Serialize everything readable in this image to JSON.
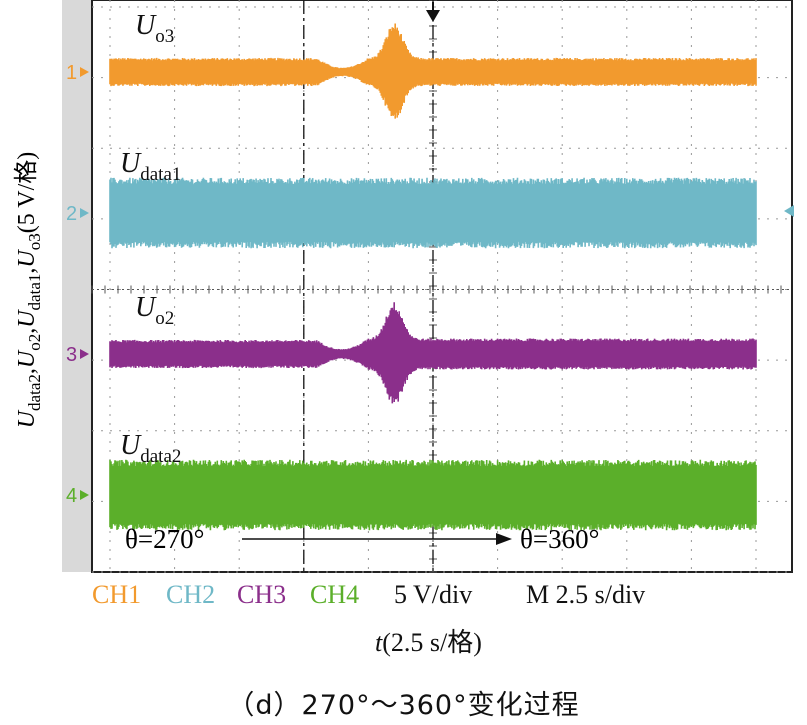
{
  "chart_data": {
    "type": "line",
    "title": "",
    "ylabel": "U_data2,U_o2,U_data1,U_o3(5 V/格)",
    "xlabel": "t(2.5 s/格)",
    "xlim": [
      0,
      25
    ],
    "ylim": [
      -20,
      20
    ],
    "grid": true,
    "scale_text": {
      "ch1": "CH1",
      "ch2": "CH2",
      "ch3": "CH3",
      "ch4": "CH4",
      "volts": "5 V/div",
      "time": "M 2.5 s/div"
    },
    "series": [
      {
        "name": "U_o3",
        "label_main": "U",
        "label_sub": "o3",
        "channel": "CH1",
        "marker": "1",
        "color": "#F29A2E",
        "baseline": 15,
        "amp_before": 1.0,
        "amp_after": 1.0,
        "transition": [
          8.0,
          10.0
        ],
        "peak_time": 11.0,
        "peak_amp": 3.5
      },
      {
        "name": "U_data1",
        "label_main": "U",
        "label_sub": "data1",
        "channel": "CH2",
        "marker": "2",
        "color": "#6FB8C7",
        "baseline": 5,
        "amp_before": 2.5,
        "amp_after": 2.5
      },
      {
        "name": "U_o2",
        "label_main": "U",
        "label_sub": "o2",
        "channel": "CH3",
        "marker": "3",
        "color": "#8B2F8B",
        "baseline": -5,
        "amp_before": 1.0,
        "amp_after": 1.1,
        "transition": [
          8.0,
          10.0
        ],
        "peak_time": 11.0,
        "peak_amp": 3.7
      },
      {
        "name": "U_data2",
        "label_main": "U",
        "label_sub": "data2",
        "channel": "CH4",
        "marker": "4",
        "color": "#5BAF2A",
        "baseline": -15,
        "amp_before": 2.5,
        "amp_after": 2.5
      }
    ],
    "annotations": {
      "theta_start": "θ=270°",
      "theta_end": "θ=360°",
      "theta_start_time": 7.5,
      "theta_end_time": 12.5,
      "trigger_time": 12.5
    }
  },
  "caption": "（d）270°～360°变化过程"
}
